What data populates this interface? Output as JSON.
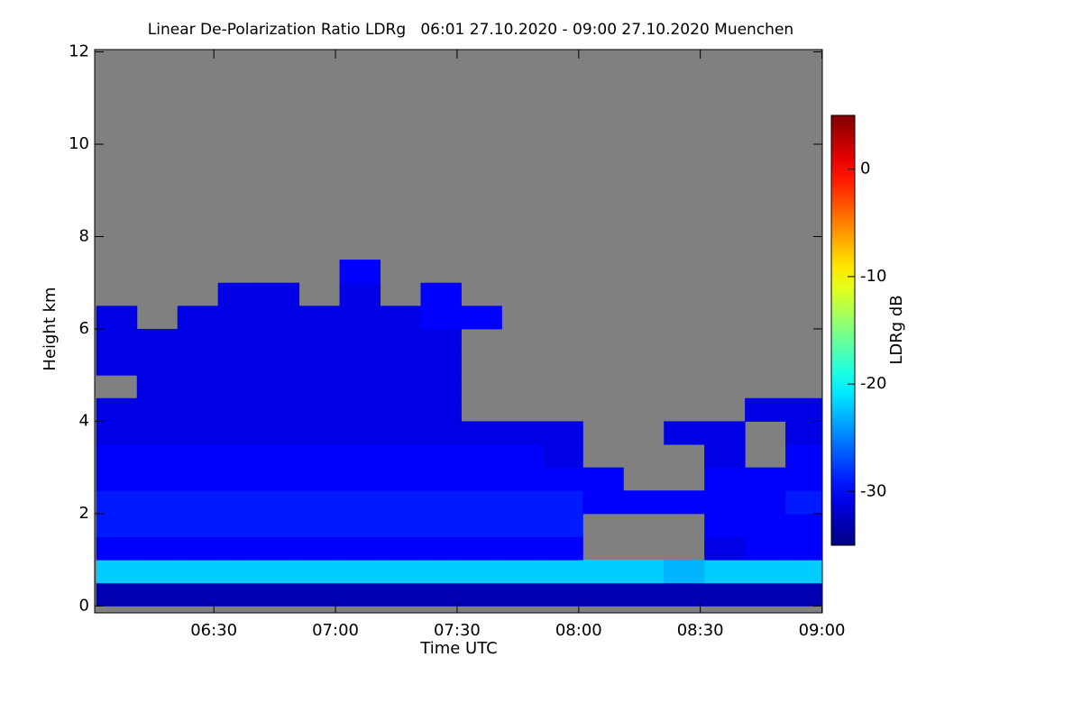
{
  "chart_data": {
    "type": "heatmap",
    "title": "Linear De-Polarization Ratio LDRg   06:01 27.10.2020 - 09:00 27.10.2020 Muenchen",
    "xlabel": "Time UTC",
    "ylabel": "Height km",
    "colorbar_label": "LDRg dB",
    "colormap": "jet",
    "missing_color": "#808080",
    "xlim": [
      360.6,
      540.1
    ],
    "xticks": [
      {
        "value": 390,
        "label": "06:30"
      },
      {
        "value": 420,
        "label": "07:00"
      },
      {
        "value": 450,
        "label": "07:30"
      },
      {
        "value": 480,
        "label": "08:00"
      },
      {
        "value": 510,
        "label": "08:30"
      },
      {
        "value": 540,
        "label": "09:00"
      }
    ],
    "ylim": [
      -0.15,
      12.05
    ],
    "yticks": [
      0,
      2,
      4,
      6,
      8,
      10,
      12
    ],
    "zlim": [
      -35,
      5
    ],
    "zticks": [
      -30,
      -20,
      -10,
      0
    ],
    "x": [
      366,
      376,
      386,
      396,
      406,
      416,
      426,
      436,
      446,
      456,
      466,
      476,
      486,
      496,
      506,
      516,
      526,
      536
    ],
    "y": [
      0.25,
      0.75,
      1.25,
      1.75,
      2.25,
      2.75,
      3.25,
      3.75,
      4.25,
      4.75,
      5.25,
      5.75,
      6.25,
      6.75,
      7.25,
      7.75,
      8.25,
      8.75,
      9.25,
      9.75,
      10.25,
      10.75,
      11.25,
      11.75
    ],
    "z": [
      [
        -33,
        -33,
        -33,
        -33,
        -33,
        -33,
        -33,
        -33,
        -33,
        -33,
        -33,
        -33,
        -33,
        -33,
        -33,
        -33,
        -33,
        -33
      ],
      [
        -22,
        -22,
        -22,
        -22,
        -22,
        -22,
        -22,
        -22,
        -22,
        -22,
        -22,
        -22,
        -22,
        -22,
        -23,
        -22,
        -22,
        -22
      ],
      [
        -30,
        -30,
        -30,
        -30,
        -30,
        -30,
        -30,
        -30,
        -30,
        -30,
        -30,
        -30,
        null,
        null,
        null,
        -31,
        -30,
        -30
      ],
      [
        -29,
        -29,
        -29,
        -29,
        -29,
        -29,
        -29,
        -29,
        -29,
        -29,
        -29,
        -29,
        null,
        null,
        null,
        -30,
        -30,
        -30
      ],
      [
        -29,
        -29,
        -29,
        -29,
        -29,
        -29,
        -29,
        -29,
        -29,
        -29,
        -29,
        -29,
        -30,
        -30,
        -30,
        -30,
        -30,
        -29
      ],
      [
        -30,
        -30,
        -30,
        -30,
        -30,
        -30,
        -30,
        -30,
        -30,
        -30,
        -30,
        -30,
        -30,
        null,
        null,
        -30,
        -30,
        -30
      ],
      [
        -30,
        -30,
        -30,
        -30,
        -30,
        -30,
        -30,
        -30,
        -30,
        -30,
        -30,
        -31,
        null,
        null,
        null,
        -31,
        null,
        -30
      ],
      [
        -31,
        -31,
        -31,
        -31,
        -31,
        -31,
        -31,
        -31,
        -31,
        -31,
        -31,
        -31,
        null,
        null,
        -31,
        -31,
        null,
        -31
      ],
      [
        -31,
        -31,
        -31,
        -31,
        -31,
        -31,
        -31,
        -31,
        -31,
        null,
        null,
        null,
        null,
        null,
        null,
        null,
        -31,
        -31
      ],
      [
        null,
        -31,
        -31,
        -31,
        -31,
        -31,
        -31,
        -31,
        -31,
        null,
        null,
        null,
        null,
        null,
        null,
        null,
        null,
        null
      ],
      [
        -31,
        -31,
        -31,
        -31,
        -31,
        -31,
        -31,
        -31,
        -31,
        null,
        null,
        null,
        null,
        null,
        null,
        null,
        null,
        null
      ],
      [
        -31,
        -31,
        -31,
        -31,
        -31,
        -31,
        -31,
        -31,
        -31,
        null,
        null,
        null,
        null,
        null,
        null,
        null,
        null,
        null
      ],
      [
        -31,
        null,
        -31,
        -31,
        -31,
        -31,
        -31,
        -31,
        -30,
        -30,
        null,
        null,
        null,
        null,
        null,
        null,
        null,
        null
      ],
      [
        null,
        null,
        null,
        -31,
        -31,
        null,
        -31,
        null,
        -30,
        null,
        null,
        null,
        null,
        null,
        null,
        null,
        null,
        null
      ],
      [
        null,
        null,
        null,
        null,
        null,
        null,
        -30,
        null,
        null,
        null,
        null,
        null,
        null,
        null,
        null,
        null,
        null,
        null
      ],
      [
        null,
        null,
        null,
        null,
        null,
        null,
        null,
        null,
        null,
        null,
        null,
        null,
        null,
        null,
        null,
        null,
        null,
        null
      ],
      [
        null,
        null,
        null,
        null,
        null,
        null,
        null,
        null,
        null,
        null,
        null,
        null,
        null,
        null,
        null,
        null,
        null,
        null
      ],
      [
        null,
        null,
        null,
        null,
        null,
        null,
        null,
        null,
        null,
        null,
        null,
        null,
        null,
        null,
        null,
        null,
        null,
        null
      ],
      [
        null,
        null,
        null,
        null,
        null,
        null,
        null,
        null,
        null,
        null,
        null,
        null,
        null,
        null,
        null,
        null,
        null,
        null
      ],
      [
        null,
        null,
        null,
        null,
        null,
        null,
        null,
        null,
        null,
        null,
        null,
        null,
        null,
        null,
        null,
        null,
        null,
        null
      ],
      [
        null,
        null,
        null,
        null,
        null,
        null,
        null,
        null,
        null,
        null,
        null,
        null,
        null,
        null,
        null,
        null,
        null,
        null
      ],
      [
        null,
        null,
        null,
        null,
        null,
        null,
        null,
        null,
        null,
        null,
        null,
        null,
        null,
        null,
        null,
        null,
        null,
        null
      ],
      [
        null,
        null,
        null,
        null,
        null,
        null,
        null,
        null,
        null,
        null,
        null,
        null,
        null,
        null,
        null,
        null,
        null,
        null
      ],
      [
        null,
        null,
        null,
        null,
        null,
        null,
        null,
        null,
        null,
        null,
        null,
        null,
        null,
        null,
        null,
        null,
        null,
        null
      ]
    ]
  }
}
